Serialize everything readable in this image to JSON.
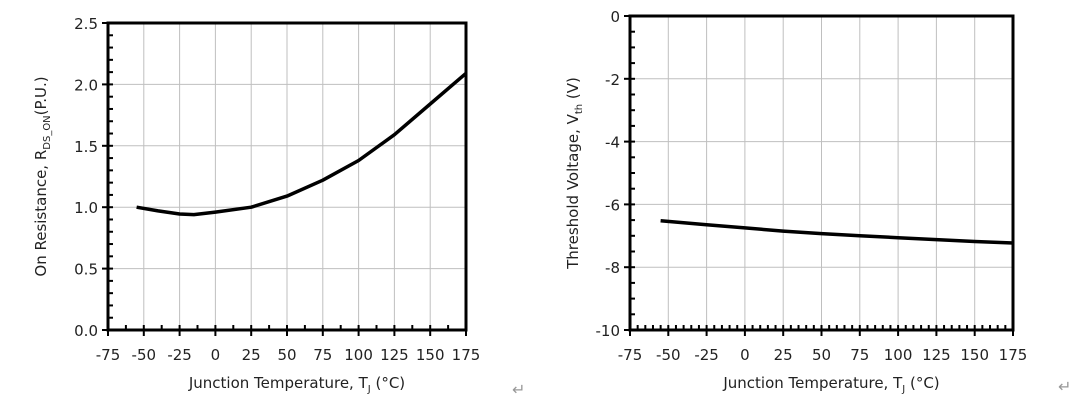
{
  "chart_data": [
    {
      "type": "line",
      "xlabel": "Junction Temperature, T",
      "xlabel_sub": "J",
      "xlabel_unit": " (°C)",
      "ylabel": "On Resistance, R",
      "ylabel_sub": "DS_ON",
      "ylabel_unit": "(P.U.)",
      "xlim": [
        -75,
        175
      ],
      "ylim": [
        0,
        2.5
      ],
      "xticks": [
        -75,
        -50,
        -25,
        0,
        25,
        50,
        75,
        100,
        125,
        150,
        175
      ],
      "yticks": [
        "0.0",
        "0.5",
        "1.0",
        "1.5",
        "2.0",
        "2.5"
      ],
      "grid": true,
      "x": [
        -55,
        -40,
        -25,
        -15,
        0,
        25,
        50,
        75,
        100,
        125,
        150,
        175
      ],
      "y": [
        1.0,
        0.97,
        0.945,
        0.94,
        0.96,
        1.0,
        1.09,
        1.22,
        1.38,
        1.59,
        1.84,
        2.09
      ],
      "line_color": "#000000"
    },
    {
      "type": "line",
      "xlabel": "Junction Temperature, T",
      "xlabel_sub": "J",
      "xlabel_unit": " (°C)",
      "ylabel": "Threshold Voltage, V",
      "ylabel_sub": "th",
      "ylabel_unit": " (V)",
      "xlim": [
        -75,
        175
      ],
      "ylim": [
        -10,
        0
      ],
      "xticks": [
        -75,
        -50,
        -25,
        0,
        25,
        50,
        75,
        100,
        125,
        150,
        175
      ],
      "yticks": [
        "-10",
        "-8",
        "-6",
        "-4",
        "-2",
        "0"
      ],
      "grid": true,
      "x": [
        -55,
        -25,
        0,
        25,
        50,
        75,
        100,
        125,
        150,
        175
      ],
      "y": [
        -6.52,
        -6.65,
        -6.75,
        -6.85,
        -6.93,
        -7.0,
        -7.06,
        -7.12,
        -7.18,
        -7.23
      ],
      "line_color": "#000000"
    }
  ],
  "return_mark": "↵"
}
